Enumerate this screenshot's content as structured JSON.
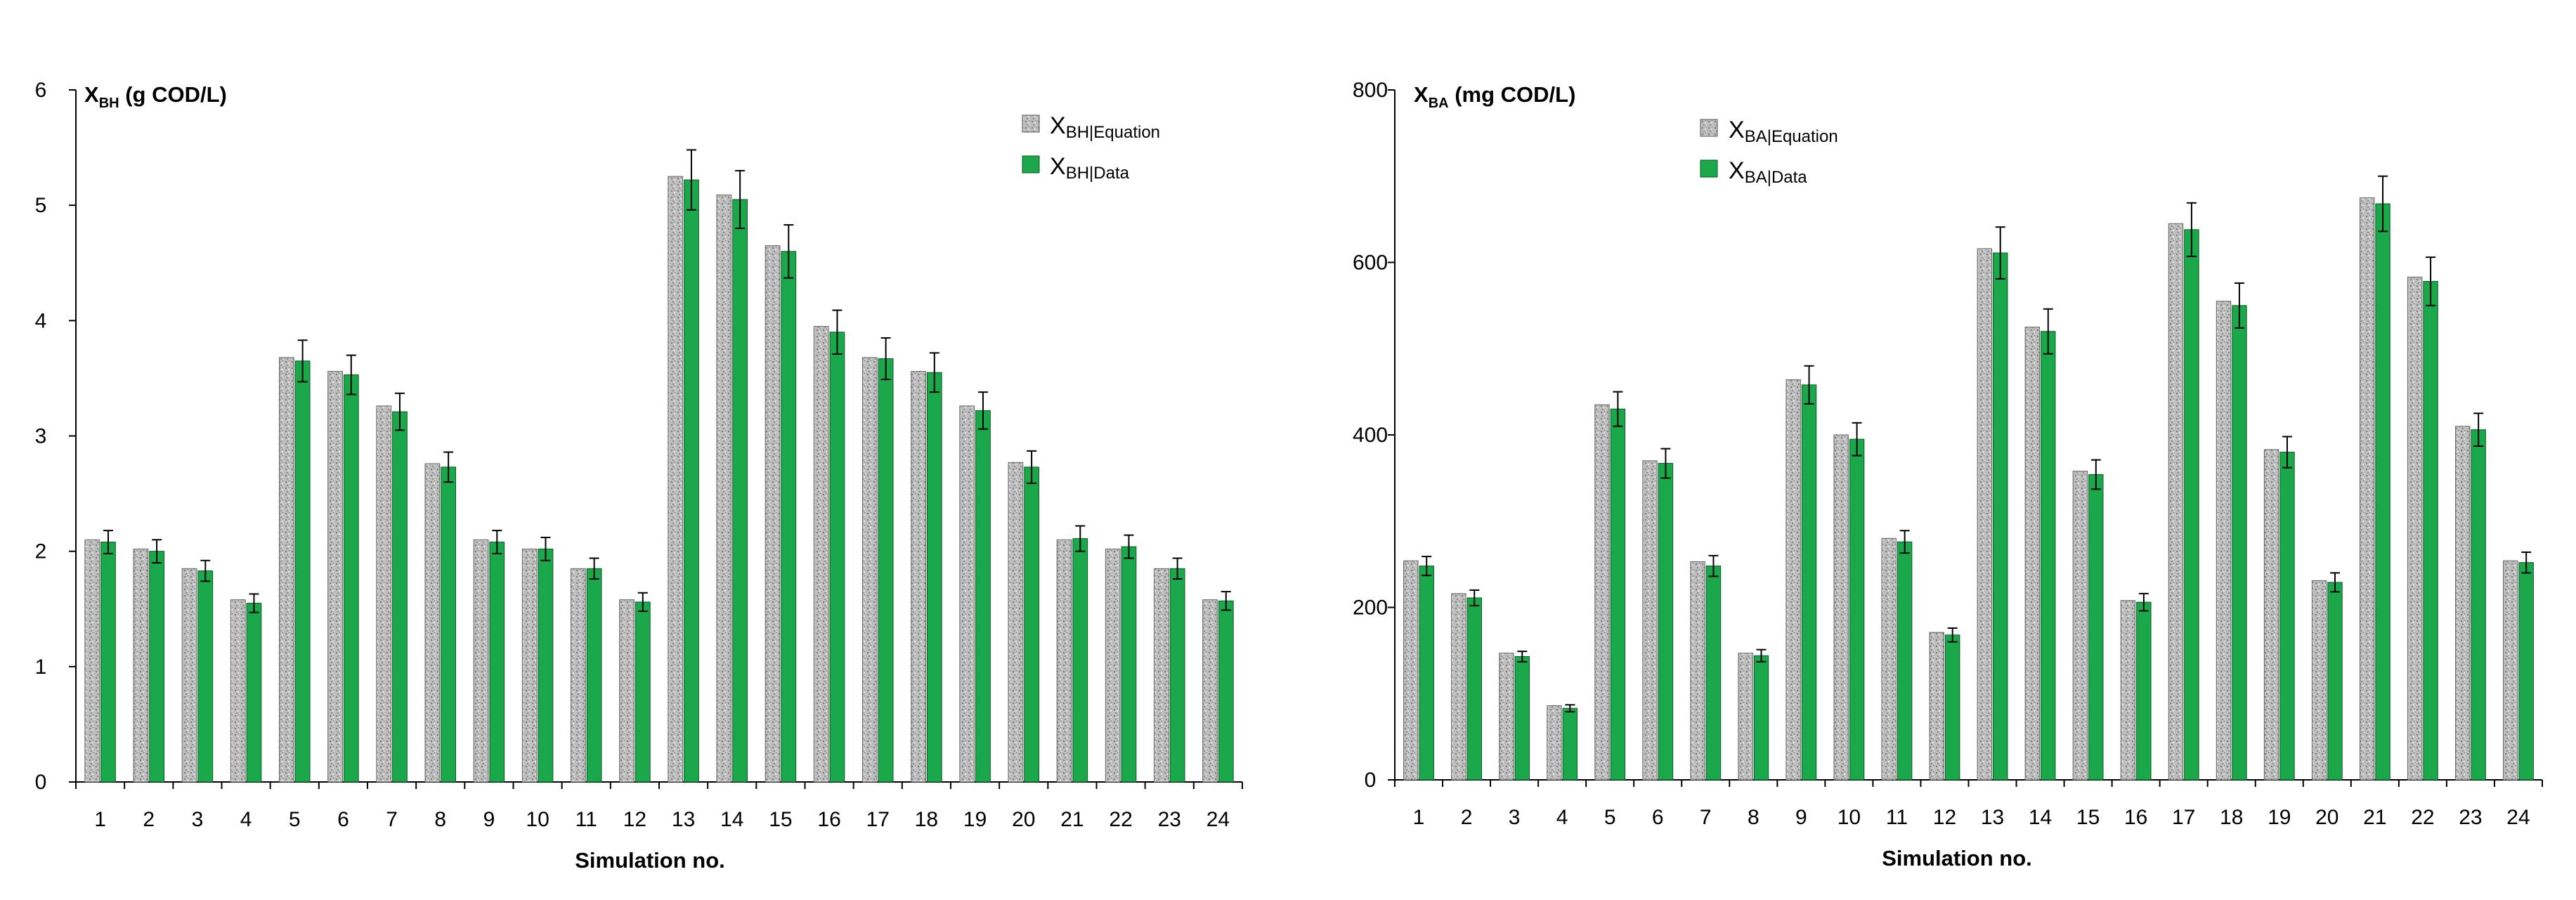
{
  "chart_data": [
    {
      "type": "bar",
      "title_main": "X",
      "title_sub": "BH",
      "title_rest": " (g COD/L)",
      "xlabel": "Simulation no.",
      "ylim": [
        0,
        6
      ],
      "yticks": [
        "0",
        "1",
        "2",
        "3",
        "4",
        "5",
        "6"
      ],
      "categories": [
        "1",
        "2",
        "3",
        "4",
        "5",
        "6",
        "7",
        "8",
        "9",
        "10",
        "11",
        "12",
        "13",
        "14",
        "15",
        "16",
        "17",
        "18",
        "19",
        "20",
        "21",
        "22",
        "23",
        "24"
      ],
      "legend_position": "top-right",
      "series": [
        {
          "name_main": "X",
          "name_sub": "BH|Equation",
          "color": "#b8b8b8",
          "pattern": "speckled",
          "values": [
            2.1,
            2.02,
            1.85,
            1.58,
            3.68,
            3.56,
            3.26,
            2.76,
            2.1,
            2.02,
            1.85,
            1.58,
            5.25,
            5.09,
            4.65,
            3.95,
            3.68,
            3.56,
            3.26,
            2.77,
            2.1,
            2.02,
            1.85,
            1.58
          ]
        },
        {
          "name_main": "X",
          "name_sub": "BH|Data",
          "color": "#1aa84a",
          "values": [
            2.08,
            2.0,
            1.83,
            1.55,
            3.65,
            3.53,
            3.21,
            2.73,
            2.08,
            2.02,
            1.85,
            1.56,
            5.22,
            5.05,
            4.6,
            3.9,
            3.67,
            3.55,
            3.22,
            2.73,
            2.11,
            2.04,
            1.85,
            1.57
          ],
          "errors": [
            0.1,
            0.1,
            0.09,
            0.08,
            0.18,
            0.17,
            0.16,
            0.13,
            0.1,
            0.1,
            0.09,
            0.08,
            0.26,
            0.25,
            0.23,
            0.19,
            0.18,
            0.17,
            0.16,
            0.14,
            0.11,
            0.1,
            0.09,
            0.08
          ]
        }
      ]
    },
    {
      "type": "bar",
      "title_main": "X",
      "title_sub": "BA",
      "title_rest": " (mg COD/L)",
      "xlabel": "Simulation no.",
      "ylim": [
        0,
        800
      ],
      "yticks": [
        "0",
        "200",
        "400",
        "600",
        "800"
      ],
      "categories": [
        "1",
        "2",
        "3",
        "4",
        "5",
        "6",
        "7",
        "8",
        "9",
        "10",
        "11",
        "12",
        "13",
        "14",
        "15",
        "16",
        "17",
        "18",
        "19",
        "20",
        "21",
        "22",
        "23",
        "24"
      ],
      "legend_position": "top-left",
      "series": [
        {
          "name_main": "X",
          "name_sub": "BA|Equation",
          "color": "#b8b8b8",
          "pattern": "speckled",
          "values": [
            254,
            216,
            147,
            86,
            435,
            370,
            253,
            147,
            464,
            400,
            280,
            171,
            616,
            525,
            358,
            208,
            645,
            555,
            383,
            231,
            675,
            583,
            410,
            254
          ]
        },
        {
          "name_main": "X",
          "name_sub": "BA|Data",
          "color": "#1aa84a",
          "values": [
            248,
            211,
            143,
            83,
            430,
            367,
            248,
            144,
            458,
            395,
            276,
            168,
            611,
            520,
            354,
            206,
            638,
            550,
            380,
            229,
            668,
            578,
            406,
            252
          ],
          "errors": [
            11,
            9,
            6,
            4,
            20,
            17,
            12,
            7,
            22,
            19,
            13,
            8,
            30,
            26,
            17,
            10,
            31,
            26,
            18,
            11,
            32,
            28,
            19,
            12
          ]
        }
      ]
    }
  ]
}
